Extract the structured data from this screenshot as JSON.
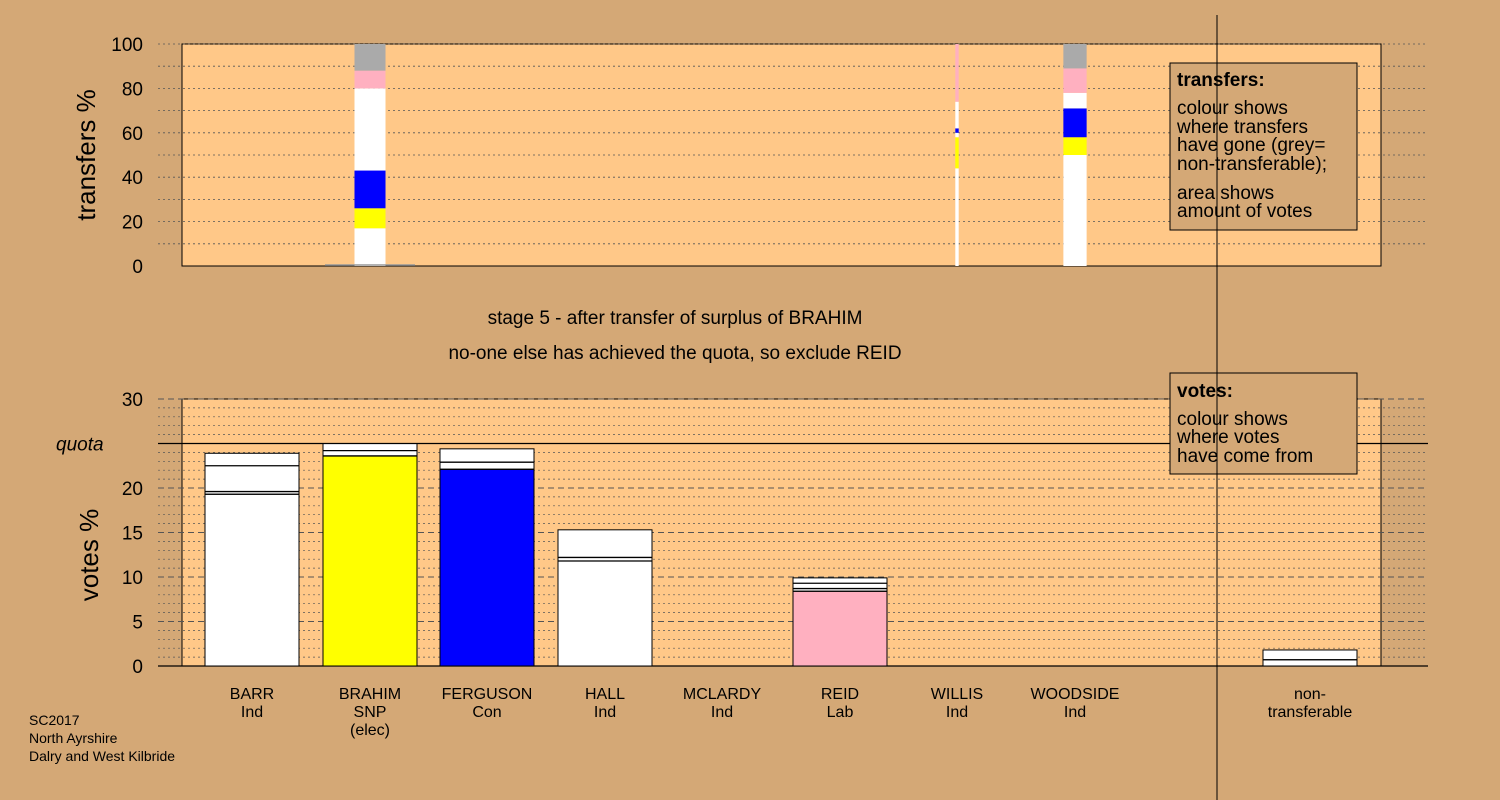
{
  "footer": [
    "SC2017",
    "North Ayrshire",
    "Dalry and West Kilbride"
  ],
  "chart_data": [
    {
      "type": "bar",
      "name": "transfers",
      "ylabel": "transfers %",
      "ylim": [
        0,
        100
      ],
      "yticks": [
        0,
        20,
        40,
        60,
        80,
        100
      ],
      "legend": {
        "title": "transfers:",
        "lines": [
          "colour shows",
          "where transfers",
          "have gone (grey=",
          "non-transferable);"
        ],
        "lines2": [
          "area shows",
          "amount of votes"
        ],
        "position": "top-right"
      },
      "colors": {
        "grey": "#aaaaaa",
        "pink": "#ffb0c0",
        "white": "#ffffff",
        "blue": "#0000ff",
        "yellow": "#ffff00"
      },
      "columns": [
        {
          "candidate": "BRAHIM",
          "width_share": 1.0,
          "segments": [
            {
              "from": 0,
              "to": 17,
              "color": "white"
            },
            {
              "from": 17,
              "to": 26,
              "color": "yellow"
            },
            {
              "from": 26,
              "to": 43,
              "color": "blue"
            },
            {
              "from": 43,
              "to": 80,
              "color": "white"
            },
            {
              "from": 80,
              "to": 88,
              "color": "pink"
            },
            {
              "from": 88,
              "to": 100,
              "color": "grey"
            }
          ]
        },
        {
          "candidate": "WILLIS",
          "width_share": 0.08,
          "segments": [
            {
              "from": 0,
              "to": 44,
              "color": "white"
            },
            {
              "from": 44,
              "to": 58,
              "color": "yellow"
            },
            {
              "from": 58,
              "to": 60,
              "color": "white"
            },
            {
              "from": 60,
              "to": 62,
              "color": "blue"
            },
            {
              "from": 62,
              "to": 74,
              "color": "white"
            },
            {
              "from": 74,
              "to": 100,
              "color": "pink"
            }
          ]
        },
        {
          "candidate": "WOODSIDE",
          "width_share": 0.75,
          "segments": [
            {
              "from": 0,
              "to": 50,
              "color": "white"
            },
            {
              "from": 50,
              "to": 58,
              "color": "yellow"
            },
            {
              "from": 58,
              "to": 71,
              "color": "blue"
            },
            {
              "from": 71,
              "to": 78,
              "color": "white"
            },
            {
              "from": 78,
              "to": 89,
              "color": "pink"
            },
            {
              "from": 89,
              "to": 100,
              "color": "grey"
            }
          ]
        }
      ]
    },
    {
      "type": "bar",
      "name": "votes",
      "title": "stage 5 - after transfer of surplus of BRAHIM",
      "subtitle": "no-one else has achieved the quota, so exclude REID",
      "ylabel": "votes %",
      "ylim": [
        0,
        30
      ],
      "yticks": [
        0,
        5,
        10,
        15,
        20,
        25,
        30
      ],
      "quota": 25,
      "quota_label": "quota",
      "legend": {
        "title": "votes:",
        "lines": [
          "colour shows",
          "where votes",
          "have come from"
        ],
        "position": "top-right"
      },
      "candidates": [
        {
          "name": "BARR",
          "party": "Ind",
          "note": "",
          "color": "#ffffff",
          "total": 23.9,
          "lines": [
            19.3,
            19.6,
            22.5
          ]
        },
        {
          "name": "BRAHIM",
          "party": "SNP",
          "note": "(elec)",
          "color": "#ffff00",
          "total": 25.0,
          "lines": [
            23.6,
            24.2
          ]
        },
        {
          "name": "FERGUSON",
          "party": "Con",
          "note": "",
          "color": "#0000ff",
          "total": 24.4,
          "lines": [
            22.1,
            22.9
          ]
        },
        {
          "name": "HALL",
          "party": "Ind",
          "note": "",
          "color": "#ffffff",
          "total": 15.3,
          "lines": [
            11.8,
            12.2
          ]
        },
        {
          "name": "MCLARDY",
          "party": "Ind",
          "note": "",
          "color": "#ffffff",
          "total": 0,
          "lines": []
        },
        {
          "name": "REID",
          "party": "Lab",
          "note": "",
          "color": "#ffb0c0",
          "total": 9.9,
          "lines": [
            8.4,
            8.7,
            9.3
          ]
        },
        {
          "name": "WILLIS",
          "party": "Ind",
          "note": "",
          "color": "#ffffff",
          "total": 0,
          "lines": []
        },
        {
          "name": "WOODSIDE",
          "party": "Ind",
          "note": "",
          "color": "#ffffff",
          "total": 0,
          "lines": []
        }
      ],
      "non_transferable": {
        "label": [
          "non-",
          "transferable"
        ],
        "total": 1.8,
        "lines": [
          0.7
        ]
      }
    }
  ]
}
